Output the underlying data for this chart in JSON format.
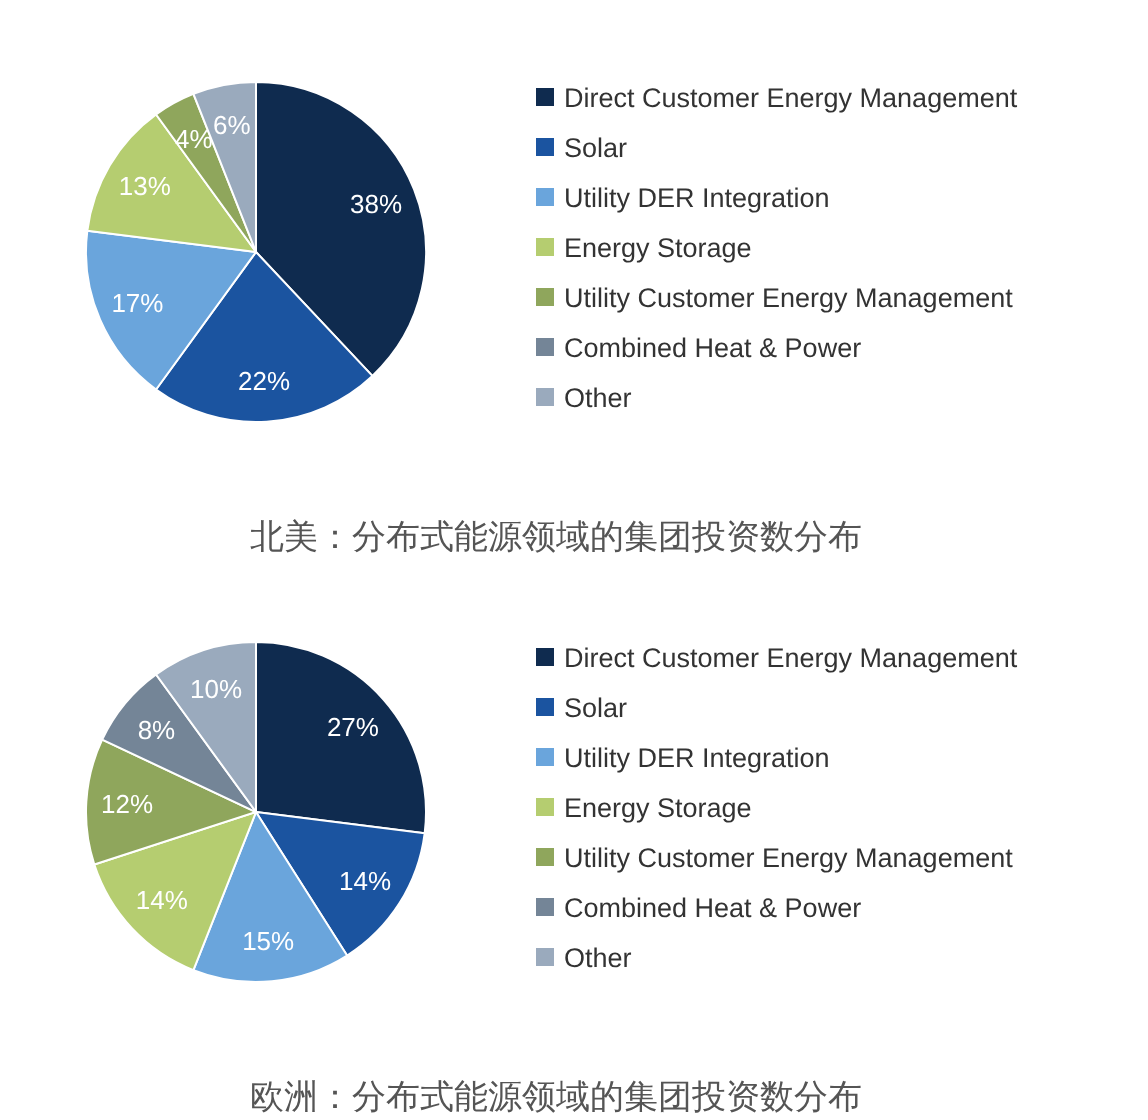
{
  "chart_data": [
    {
      "type": "pie",
      "title": "北美：分布式能源领域的集团投资数分布",
      "categories": [
        "Direct Customer Energy Management",
        "Solar",
        "Utility DER Integration",
        "Energy Storage",
        "Utility Customer Energy Management",
        "Combined Heat & Power",
        "Other"
      ],
      "values": [
        38,
        22,
        17,
        13,
        4,
        0,
        6
      ],
      "value_labels": [
        "38%",
        "22%",
        "17%",
        "13%",
        "4%",
        null,
        "6%"
      ],
      "colors": [
        "#0f2b4f",
        "#1b54a0",
        "#6aa5dc",
        "#b5cd70",
        "#8fa65c",
        "#748597",
        "#9aaabd"
      ],
      "legend": "right"
    },
    {
      "type": "pie",
      "title": "欧洲：分布式能源领域的集团投资数分布",
      "categories": [
        "Direct Customer Energy Management",
        "Solar",
        "Utility DER Integration",
        "Energy Storage",
        "Utility Customer Energy Management",
        "Combined Heat & Power",
        "Other"
      ],
      "values": [
        27,
        14,
        15,
        14,
        12,
        8,
        10
      ],
      "value_labels": [
        "27%",
        "14%",
        "15%",
        "14%",
        "12%",
        "8%",
        "10%"
      ],
      "colors": [
        "#0f2b4f",
        "#1b54a0",
        "#6aa5dc",
        "#b5cd70",
        "#8fa65c",
        "#748597",
        "#9aaabd"
      ],
      "legend": "right"
    }
  ]
}
